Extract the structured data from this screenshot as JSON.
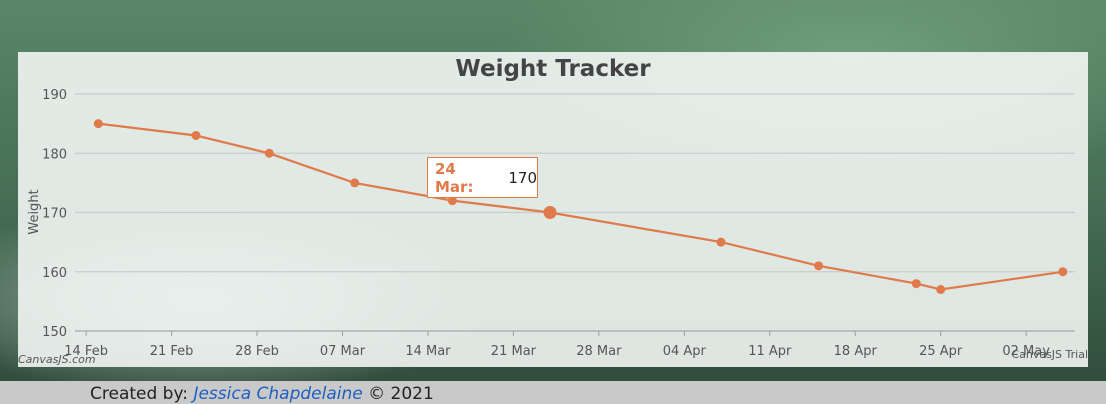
{
  "colors": {
    "line": "#e07a4a",
    "grid": "#c8cccc",
    "text": "#555555"
  },
  "chart_data": {
    "type": "line",
    "title": "Weight Tracker",
    "xlabel": "",
    "ylabel": "Weight",
    "ylim": [
      150,
      190
    ],
    "y_ticks": [
      150,
      160,
      170,
      180,
      190
    ],
    "x_range_days": [
      -0.5,
      81
    ],
    "x_ticks": [
      {
        "day": 0,
        "label": "14 Feb"
      },
      {
        "day": 7,
        "label": "21 Feb"
      },
      {
        "day": 14,
        "label": "28 Feb"
      },
      {
        "day": 21,
        "label": "07 Mar"
      },
      {
        "day": 28,
        "label": "14 Mar"
      },
      {
        "day": 35,
        "label": "21 Mar"
      },
      {
        "day": 42,
        "label": "28 Mar"
      },
      {
        "day": 49,
        "label": "04 Apr"
      },
      {
        "day": 56,
        "label": "11 Apr"
      },
      {
        "day": 63,
        "label": "18 Apr"
      },
      {
        "day": 70,
        "label": "25 Apr"
      },
      {
        "day": 77,
        "label": "02 May"
      }
    ],
    "points": [
      {
        "day": 1,
        "label": "15 Feb",
        "value": 185
      },
      {
        "day": 9,
        "label": "23 Feb",
        "value": 183
      },
      {
        "day": 15,
        "label": "01 Mar",
        "value": 180
      },
      {
        "day": 22,
        "label": "08 Mar",
        "value": 175
      },
      {
        "day": 30,
        "label": "16 Mar",
        "value": 172
      },
      {
        "day": 38,
        "label": "24 Mar",
        "value": 170
      },
      {
        "day": 52,
        "label": "07 Apr",
        "value": 165
      },
      {
        "day": 60,
        "label": "15 Apr",
        "value": 161
      },
      {
        "day": 68,
        "label": "23 Apr",
        "value": 158
      },
      {
        "day": 70,
        "label": "25 Apr",
        "value": 157
      },
      {
        "day": 80,
        "label": "05 May",
        "value": 160
      }
    ],
    "highlight_index": 5,
    "grid": true
  },
  "tooltip": {
    "label": "24 Mar:",
    "value": "170"
  },
  "credits": {
    "left": "CanvasJS.com",
    "right": "CanvasJS Trial"
  },
  "footer": {
    "prefix": "Created by:",
    "author": "Jessica Chapdelaine",
    "suffix": "© 2021"
  }
}
